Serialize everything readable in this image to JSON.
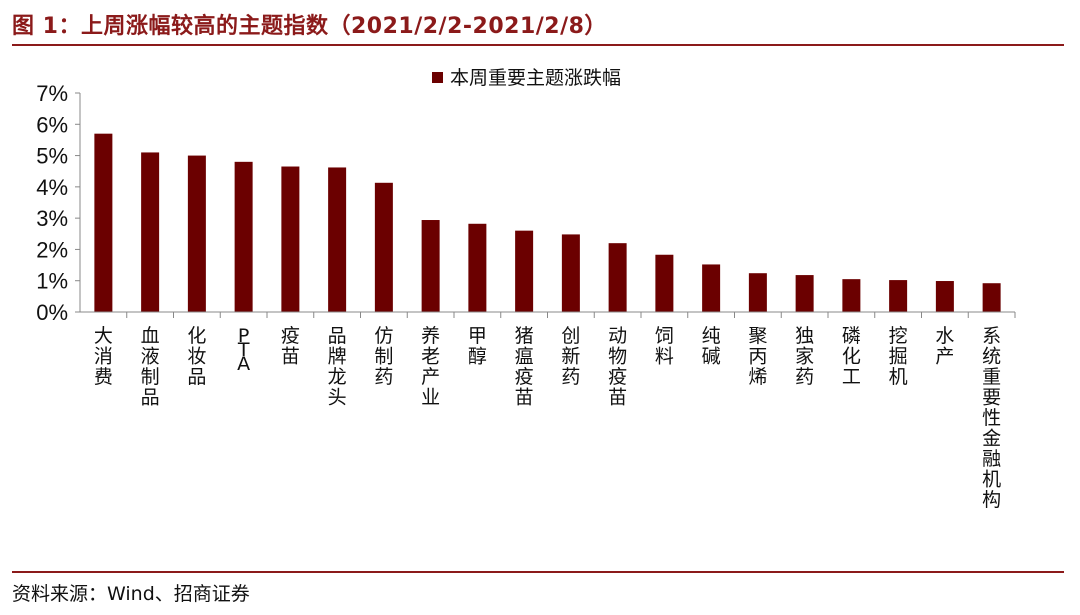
{
  "title": "图 1：上周涨幅较高的主题指数（2021/2/2-2021/2/8）",
  "source": "资料来源：Wind、招商证券",
  "colors": {
    "bar": "#6B0000",
    "accent": "#8B1A1A",
    "axis": "#888888"
  },
  "chart_data": {
    "type": "bar",
    "categories": [
      "大消费",
      "血液制品",
      "化妆品",
      "PTA",
      "疫苗",
      "品牌龙头",
      "仿制药",
      "养老产业",
      "甲醇",
      "猪瘟疫苗",
      "创新药",
      "动物疫苗",
      "饲料",
      "纯碱",
      "聚丙烯",
      "独家药",
      "磷化工",
      "挖掘机",
      "水产",
      "系统重要性金融机构"
    ],
    "series": [
      {
        "name": "本周重要主题涨跌幅",
        "values": [
          5.7,
          5.1,
          5.0,
          4.8,
          4.65,
          4.62,
          4.13,
          2.94,
          2.82,
          2.6,
          2.48,
          2.2,
          1.83,
          1.52,
          1.24,
          1.18,
          1.05,
          1.02,
          0.99,
          0.92
        ]
      }
    ],
    "yticks": [
      "0%",
      "1%",
      "2%",
      "3%",
      "4%",
      "5%",
      "6%",
      "7%"
    ],
    "ylim": [
      0,
      7
    ],
    "grid": false,
    "legend": "top-center"
  }
}
